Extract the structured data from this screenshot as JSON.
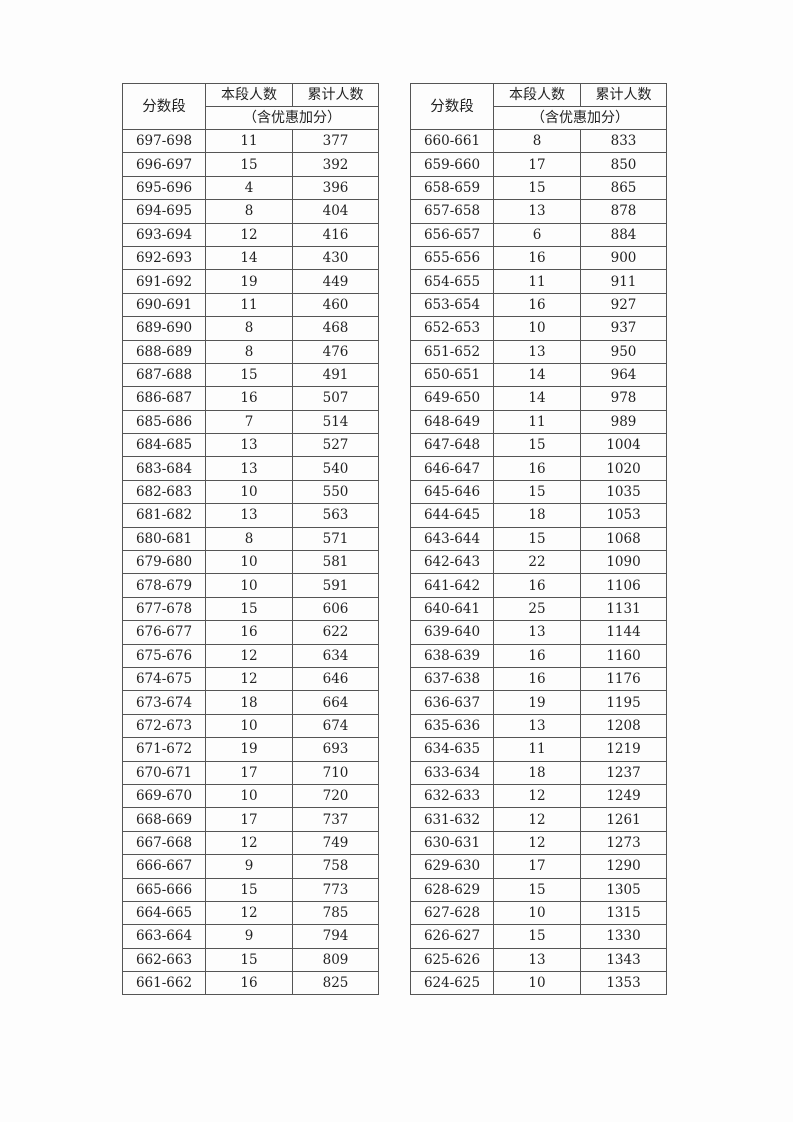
{
  "header": {
    "range_label": "分数段",
    "count_label": "本段人数",
    "cumulative_label": "累计人数",
    "note_label": "（含优惠加分）"
  },
  "tables": [
    {
      "rows": [
        [
          "697-698",
          "11",
          "377"
        ],
        [
          "696-697",
          "15",
          "392"
        ],
        [
          "695-696",
          "4",
          "396"
        ],
        [
          "694-695",
          "8",
          "404"
        ],
        [
          "693-694",
          "12",
          "416"
        ],
        [
          "692-693",
          "14",
          "430"
        ],
        [
          "691-692",
          "19",
          "449"
        ],
        [
          "690-691",
          "11",
          "460"
        ],
        [
          "689-690",
          "8",
          "468"
        ],
        [
          "688-689",
          "8",
          "476"
        ],
        [
          "687-688",
          "15",
          "491"
        ],
        [
          "686-687",
          "16",
          "507"
        ],
        [
          "685-686",
          "7",
          "514"
        ],
        [
          "684-685",
          "13",
          "527"
        ],
        [
          "683-684",
          "13",
          "540"
        ],
        [
          "682-683",
          "10",
          "550"
        ],
        [
          "681-682",
          "13",
          "563"
        ],
        [
          "680-681",
          "8",
          "571"
        ],
        [
          "679-680",
          "10",
          "581"
        ],
        [
          "678-679",
          "10",
          "591"
        ],
        [
          "677-678",
          "15",
          "606"
        ],
        [
          "676-677",
          "16",
          "622"
        ],
        [
          "675-676",
          "12",
          "634"
        ],
        [
          "674-675",
          "12",
          "646"
        ],
        [
          "673-674",
          "18",
          "664"
        ],
        [
          "672-673",
          "10",
          "674"
        ],
        [
          "671-672",
          "19",
          "693"
        ],
        [
          "670-671",
          "17",
          "710"
        ],
        [
          "669-670",
          "10",
          "720"
        ],
        [
          "668-669",
          "17",
          "737"
        ],
        [
          "667-668",
          "12",
          "749"
        ],
        [
          "666-667",
          "9",
          "758"
        ],
        [
          "665-666",
          "15",
          "773"
        ],
        [
          "664-665",
          "12",
          "785"
        ],
        [
          "663-664",
          "9",
          "794"
        ],
        [
          "662-663",
          "15",
          "809"
        ],
        [
          "661-662",
          "16",
          "825"
        ]
      ]
    },
    {
      "rows": [
        [
          "660-661",
          "8",
          "833"
        ],
        [
          "659-660",
          "17",
          "850"
        ],
        [
          "658-659",
          "15",
          "865"
        ],
        [
          "657-658",
          "13",
          "878"
        ],
        [
          "656-657",
          "6",
          "884"
        ],
        [
          "655-656",
          "16",
          "900"
        ],
        [
          "654-655",
          "11",
          "911"
        ],
        [
          "653-654",
          "16",
          "927"
        ],
        [
          "652-653",
          "10",
          "937"
        ],
        [
          "651-652",
          "13",
          "950"
        ],
        [
          "650-651",
          "14",
          "964"
        ],
        [
          "649-650",
          "14",
          "978"
        ],
        [
          "648-649",
          "11",
          "989"
        ],
        [
          "647-648",
          "15",
          "1004"
        ],
        [
          "646-647",
          "16",
          "1020"
        ],
        [
          "645-646",
          "15",
          "1035"
        ],
        [
          "644-645",
          "18",
          "1053"
        ],
        [
          "643-644",
          "15",
          "1068"
        ],
        [
          "642-643",
          "22",
          "1090"
        ],
        [
          "641-642",
          "16",
          "1106"
        ],
        [
          "640-641",
          "25",
          "1131"
        ],
        [
          "639-640",
          "13",
          "1144"
        ],
        [
          "638-639",
          "16",
          "1160"
        ],
        [
          "637-638",
          "16",
          "1176"
        ],
        [
          "636-637",
          "19",
          "1195"
        ],
        [
          "635-636",
          "13",
          "1208"
        ],
        [
          "634-635",
          "11",
          "1219"
        ],
        [
          "633-634",
          "18",
          "1237"
        ],
        [
          "632-633",
          "12",
          "1249"
        ],
        [
          "631-632",
          "12",
          "1261"
        ],
        [
          "630-631",
          "12",
          "1273"
        ],
        [
          "629-630",
          "17",
          "1290"
        ],
        [
          "628-629",
          "15",
          "1305"
        ],
        [
          "627-628",
          "10",
          "1315"
        ],
        [
          "626-627",
          "15",
          "1330"
        ],
        [
          "625-626",
          "13",
          "1343"
        ],
        [
          "624-625",
          "10",
          "1353"
        ]
      ]
    }
  ]
}
